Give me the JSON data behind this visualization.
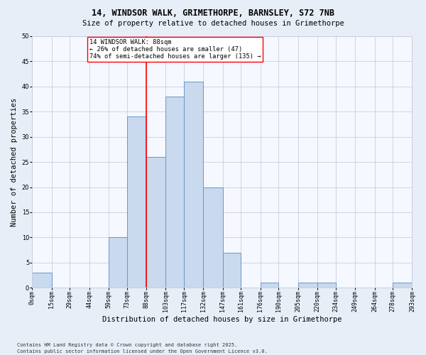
{
  "title1": "14, WINDSOR WALK, GRIMETHORPE, BARNSLEY, S72 7NB",
  "title2": "Size of property relative to detached houses in Grimethorpe",
  "xlabel": "Distribution of detached houses by size in Grimethorpe",
  "ylabel": "Number of detached properties",
  "footer1": "Contains HM Land Registry data © Crown copyright and database right 2025.",
  "footer2": "Contains public sector information licensed under the Open Government Licence v3.0.",
  "bin_edges": [
    0,
    15,
    29,
    44,
    59,
    73,
    88,
    103,
    117,
    132,
    147,
    161,
    176,
    190,
    205,
    220,
    234,
    249,
    264,
    278,
    293
  ],
  "bin_labels": [
    "0sqm",
    "15sqm",
    "29sqm",
    "44sqm",
    "59sqm",
    "73sqm",
    "88sqm",
    "103sqm",
    "117sqm",
    "132sqm",
    "147sqm",
    "161sqm",
    "176sqm",
    "190sqm",
    "205sqm",
    "220sqm",
    "234sqm",
    "249sqm",
    "264sqm",
    "278sqm",
    "293sqm"
  ],
  "counts": [
    3,
    0,
    0,
    0,
    10,
    34,
    26,
    38,
    41,
    20,
    7,
    0,
    1,
    0,
    1,
    1,
    0,
    0,
    0,
    1
  ],
  "bar_color": "#c9d9ee",
  "bar_edge_color": "#6699cc",
  "vline_x": 88,
  "vline_color": "red",
  "annotation_line1": "14 WINDSOR WALK: 88sqm",
  "annotation_line2": "← 26% of detached houses are smaller (47)",
  "annotation_line3": "74% of semi-detached houses are larger (135) →",
  "annotation_box_color": "white",
  "annotation_box_edge": "red",
  "ylim": [
    0,
    50
  ],
  "yticks": [
    0,
    5,
    10,
    15,
    20,
    25,
    30,
    35,
    40,
    45,
    50
  ],
  "bg_color": "#e8eef8",
  "plot_bg_color": "#f5f8ff",
  "grid_color": "#ccccdd",
  "title1_fontsize": 8.5,
  "title2_fontsize": 7.5,
  "tick_fontsize": 6.0,
  "ylabel_fontsize": 7.5,
  "xlabel_fontsize": 7.5,
  "footer_fontsize": 5.0
}
